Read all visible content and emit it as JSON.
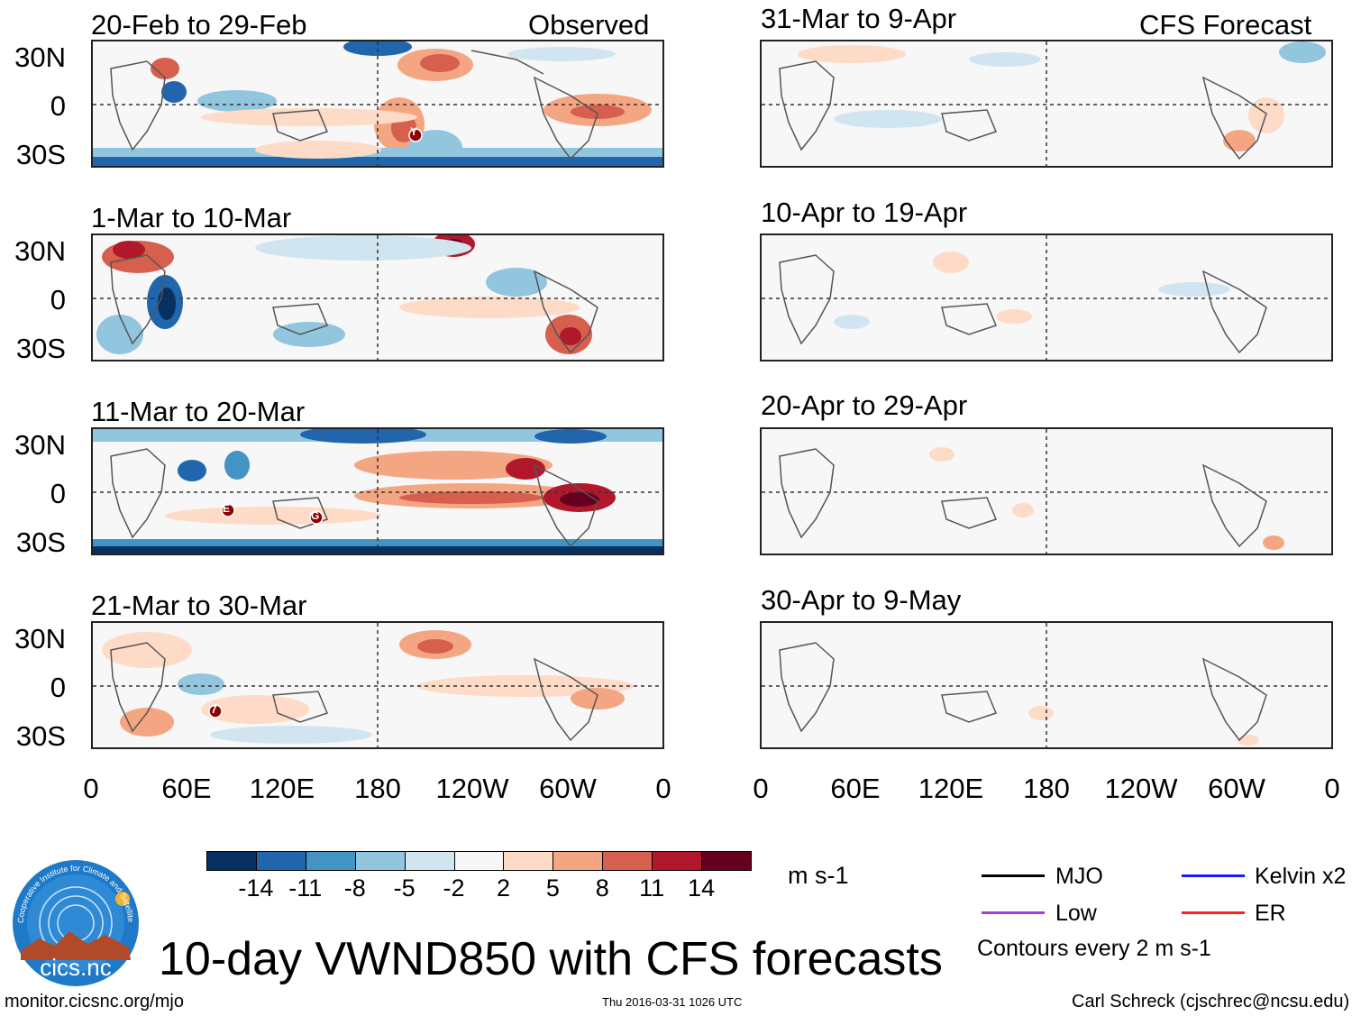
{
  "column_labels": {
    "left": "Observed",
    "right": "CFS Forecast"
  },
  "observed_panels": [
    {
      "title": "20-Feb to 29-Feb",
      "markers": [
        "Y"
      ]
    },
    {
      "title": "1-Mar to 10-Mar",
      "markers": []
    },
    {
      "title": "11-Mar to 20-Mar",
      "markers": [
        "E",
        "G"
      ]
    },
    {
      "title": "21-Mar to 30-Mar",
      "markers": [
        "7"
      ]
    }
  ],
  "forecast_panels": [
    {
      "title": "31-Mar to 9-Apr"
    },
    {
      "title": "10-Apr to 19-Apr"
    },
    {
      "title": "20-Apr to 29-Apr"
    },
    {
      "title": "30-Apr to 9-May"
    }
  ],
  "lat_labels": [
    "30N",
    "0",
    "30S"
  ],
  "lon_labels": [
    "0",
    "60E",
    "120E",
    "180",
    "120W",
    "60W",
    "0"
  ],
  "colorbar": {
    "units": "m s-1",
    "ticks": [
      "-14",
      "-11",
      "-8",
      "-5",
      "-2",
      "2",
      "5",
      "8",
      "11",
      "14"
    ],
    "colors": [
      "#053061",
      "#2166ac",
      "#4393c3",
      "#92c5de",
      "#d1e5f0",
      "#f7f7f7",
      "#fddbc7",
      "#f4a582",
      "#d6604d",
      "#b2182b",
      "#67001f"
    ]
  },
  "legend": {
    "items": [
      {
        "label": "MJO",
        "color": "#000000"
      },
      {
        "label": "Kelvin x2",
        "color": "#1a1aff"
      },
      {
        "label": "Low",
        "color": "#a040e0"
      },
      {
        "label": "ER",
        "color": "#ff2020"
      }
    ],
    "note": "Contours every 2 m s-1"
  },
  "logo": {
    "text": "cics.nc",
    "ring_text": "Cooperative Institute for Climate and Satellites"
  },
  "main_title": "10-day VWND850 with CFS forecasts",
  "footer": {
    "url": "monitor.cicsnc.org/mjo",
    "timestamp": "Thu 2016-03-31 1026 UTC",
    "author": "Carl Schreck (cjschrec@ncsu.edu)"
  }
}
